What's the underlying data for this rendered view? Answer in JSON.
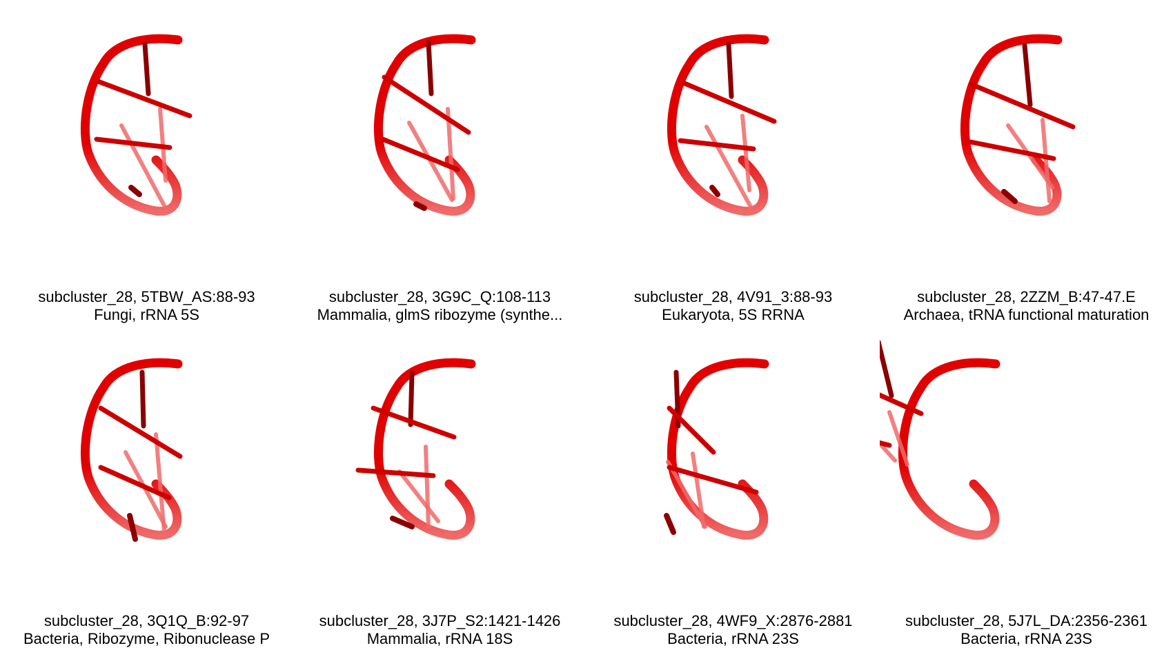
{
  "panels": [
    {
      "id_line": "subcluster_28, 5TBW_AS:88-93",
      "desc_line": "Fungi, rRNA 5S"
    },
    {
      "id_line": "subcluster_28, 3G9C_Q:108-113",
      "desc_line": "Mammalia, glmS ribozyme (synthe..."
    },
    {
      "id_line": "subcluster_28, 4V91_3:88-93",
      "desc_line": "Eukaryota, 5S RRNA"
    },
    {
      "id_line": "subcluster_28, 2ZZM_B:47-47.E",
      "desc_line": "Archaea, tRNA functional maturation"
    },
    {
      "id_line": "subcluster_28, 3Q1Q_B:92-97",
      "desc_line": "Bacteria, Ribozyme, Ribonuclease P"
    },
    {
      "id_line": "subcluster_28, 3J7P_S2:1421-1426",
      "desc_line": "Mammalia, rRNA 18S"
    },
    {
      "id_line": "subcluster_28, 4WF9_X:2876-2881",
      "desc_line": "Bacteria, rRNA 23S"
    },
    {
      "id_line": "subcluster_28, 5J7L_DA:2356-2361",
      "desc_line": "Bacteria, rRNA 23S"
    }
  ],
  "colors": {
    "backbone": "#e00000",
    "backbone_light": "#f06a6a",
    "strut": "#cc0000",
    "strut_dark": "#8a0000",
    "background": "#ffffff",
    "text": "#000000"
  }
}
